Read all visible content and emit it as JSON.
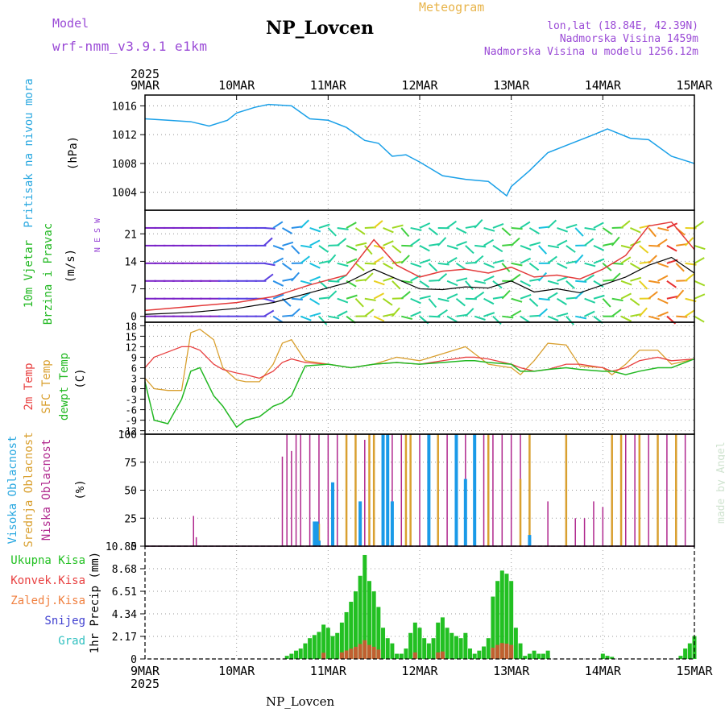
{
  "header": {
    "model_label": "Model",
    "model_name": "wrf-nmm_v3.9.1 e1km",
    "title": "NP_Lovcen",
    "subtitle": "Meteogram",
    "coords": "lon,lat (18.84E, 42.39N)",
    "altitude": "Nadmorska Visina 1459m",
    "model_altitude": "Nadmorska Visina u modelu 1256.12m",
    "footer_title": "NP_Lovcen",
    "credit": "made by Angel"
  },
  "colors": {
    "pressure": "#1aa0e8",
    "windspeed": "#000000",
    "gust": "#e33a3a",
    "t2m": "#e84040",
    "sfc": "#d9a030",
    "dew": "#22b822",
    "cloud_high": "#1a9ae8",
    "cloud_mid": "#d9a030",
    "cloud_low": "#b0288e",
    "precip_total": "#22c022",
    "precip_conv": "#e84040",
    "label_purple": "#9a4ad6",
    "label_blue": "#2aa8e0"
  },
  "time_axis": {
    "year": "2025",
    "labels": [
      "9MAR",
      "10MAR",
      "11MAR",
      "12MAR",
      "13MAR",
      "14MAR",
      "15MAR"
    ]
  },
  "chart_data": [
    {
      "type": "line",
      "panel": "pressure",
      "ylabel_lines": [
        "Pritisak na nivou mora",
        "(hPa)"
      ],
      "yticks": [
        "1016",
        "1012",
        "1008",
        "1004"
      ],
      "ylim": [
        1001.5,
        1017.5
      ],
      "x": [
        0,
        0.25,
        0.5,
        0.7,
        0.9,
        1.0,
        1.2,
        1.35,
        1.6,
        1.8,
        2.0,
        2.2,
        2.4,
        2.55,
        2.7,
        2.85,
        3.0,
        3.25,
        3.5,
        3.75,
        3.95,
        4.0,
        4.2,
        4.4,
        4.6,
        4.9,
        5.05,
        5.3,
        5.5,
        5.75,
        6.0
      ],
      "values": [
        1014.2,
        1014.0,
        1013.8,
        1013.2,
        1014.0,
        1015.0,
        1015.8,
        1016.2,
        1016.0,
        1014.2,
        1014.0,
        1013.0,
        1011.2,
        1010.8,
        1009.0,
        1009.2,
        1008.2,
        1006.3,
        1005.8,
        1005.5,
        1003.5,
        1004.8,
        1007.0,
        1009.5,
        1010.5,
        1012.0,
        1012.8,
        1011.5,
        1011.3,
        1009.0,
        1008.0
      ]
    },
    {
      "type": "line",
      "panel": "wind",
      "ylabel_lines": [
        "10m Vjetar",
        "Brzina i Pravac",
        "(m/s)"
      ],
      "direction_key": [
        "N",
        "E",
        "S",
        "W"
      ],
      "yticks": [
        "21",
        "14",
        "7",
        "0"
      ],
      "ylim": [
        -1.5,
        27
      ],
      "x": [
        0,
        0.5,
        1.0,
        1.4,
        1.8,
        2.2,
        2.5,
        2.75,
        3.0,
        3.25,
        3.5,
        3.75,
        4.0,
        4.25,
        4.5,
        4.75,
        5.0,
        5.25,
        5.5,
        5.75,
        6.0
      ],
      "series": [
        {
          "name": "speed",
          "values": [
            0.5,
            1.0,
            2.0,
            3.5,
            6.0,
            8.5,
            12.0,
            9.5,
            7.0,
            6.8,
            7.5,
            7.2,
            9.0,
            6.2,
            7.0,
            6.0,
            8.0,
            10.0,
            13.0,
            15.0,
            11.0
          ]
        },
        {
          "name": "gust",
          "values": [
            1.5,
            2.5,
            3.5,
            5.0,
            8.0,
            10.5,
            19.5,
            13.0,
            10.0,
            11.5,
            12.0,
            11.0,
            12.5,
            10.0,
            10.5,
            9.5,
            12.0,
            15.5,
            23.0,
            24.0,
            17.0
          ]
        }
      ]
    },
    {
      "type": "line",
      "panel": "temperature",
      "ylabel_lines": [
        "2m Temp",
        "SFC Temp",
        "dewpt Temp",
        "(C)"
      ],
      "yticks": [
        "18",
        "15",
        "12",
        "9",
        "6",
        "3",
        "0",
        "-3",
        "-6",
        "-9",
        "-12"
      ],
      "ylim": [
        -13,
        19
      ],
      "x": [
        0,
        0.1,
        0.25,
        0.4,
        0.5,
        0.6,
        0.75,
        0.85,
        1.0,
        1.1,
        1.25,
        1.4,
        1.5,
        1.6,
        1.75,
        2.0,
        2.25,
        2.5,
        2.75,
        3.0,
        3.25,
        3.5,
        3.6,
        3.75,
        4.0,
        4.1,
        4.25,
        4.4,
        4.6,
        4.75,
        5.0,
        5.1,
        5.25,
        5.4,
        5.6,
        5.75,
        6.0
      ],
      "series": [
        {
          "name": "2m Temp",
          "values": [
            6,
            9,
            10.5,
            12,
            12,
            11,
            7,
            5.5,
            4.5,
            4,
            3,
            5,
            7.5,
            8.5,
            7.5,
            7,
            6,
            7,
            7.5,
            7,
            8,
            9,
            9,
            8.5,
            7,
            6,
            5,
            5.5,
            7,
            7,
            6,
            5,
            6,
            8,
            9,
            8,
            8.5
          ]
        },
        {
          "name": "SFC Temp",
          "values": [
            3,
            0,
            -0.5,
            -0.5,
            16,
            17,
            14,
            6,
            2.5,
            2,
            2,
            7,
            13,
            14,
            8,
            7,
            6,
            7,
            9,
            8,
            10,
            12,
            10,
            7,
            6,
            4,
            8,
            13,
            12.5,
            6.5,
            6,
            4,
            7,
            11,
            11,
            7,
            8.5
          ]
        },
        {
          "name": "dewpt Temp",
          "values": [
            2,
            -9,
            -10,
            -3,
            5,
            6,
            -2,
            -5,
            -11,
            -9,
            -8,
            -5,
            -4,
            -2,
            6.5,
            7,
            6,
            7,
            7.5,
            7,
            7.5,
            8,
            8,
            7.5,
            7,
            5,
            5,
            5.5,
            6,
            5.5,
            5,
            5,
            4,
            5,
            6,
            6,
            8.5
          ]
        }
      ]
    },
    {
      "type": "bar",
      "panel": "cloud",
      "ylabel_lines": [
        "Visoka Oblacnost",
        "Srednja Oblacnost",
        "Niska Oblacnost",
        "(%)"
      ],
      "yticks": [
        "100",
        "75",
        "50",
        "25",
        "0"
      ],
      "ylim": [
        0,
        100
      ],
      "series": [
        {
          "name": "Niska Oblacnost",
          "x": [
            0.53,
            0.56,
            1.5,
            1.55,
            1.6,
            1.65,
            1.7,
            1.8,
            1.9,
            2.0,
            2.1,
            2.2,
            2.3,
            2.4,
            2.5,
            2.6,
            2.7,
            2.8,
            2.9,
            3.0,
            3.1,
            3.2,
            3.3,
            3.4,
            3.5,
            3.6,
            3.7,
            3.8,
            3.9,
            4.0,
            4.1,
            4.2,
            4.4,
            4.6,
            4.7,
            4.8,
            4.9,
            5.0,
            5.25,
            5.35,
            5.5,
            5.6,
            5.7,
            5.8,
            5.9
          ],
          "values": [
            27,
            8,
            80,
            100,
            85,
            100,
            100,
            100,
            100,
            100,
            100,
            100,
            92,
            95,
            90,
            80,
            100,
            100,
            100,
            100,
            100,
            100,
            100,
            100,
            100,
            85,
            100,
            100,
            100,
            100,
            100,
            5,
            40,
            30,
            25,
            25,
            40,
            35,
            100,
            100,
            100,
            100,
            100,
            100,
            100
          ]
        },
        {
          "name": "Srednja Oblacnost",
          "x": [
            1.9,
            2.2,
            2.3,
            2.45,
            2.5,
            2.85,
            2.9,
            3.2,
            3.4,
            3.6,
            3.75,
            4.1,
            4.2,
            4.6,
            5.1,
            5.2,
            5.4,
            5.6,
            5.8
          ],
          "values": [
            20,
            100,
            100,
            100,
            100,
            100,
            100,
            100,
            100,
            100,
            100,
            60,
            100,
            100,
            100,
            100,
            100,
            100,
            100
          ]
        },
        {
          "name": "Visoka Oblacnost",
          "x": [
            1.85,
            1.88,
            1.9,
            2.05,
            2.35,
            2.6,
            2.65,
            2.7,
            3.1,
            3.4,
            3.5,
            3.6,
            4.2
          ],
          "values": [
            22,
            22,
            5,
            57,
            40,
            100,
            100,
            40,
            100,
            100,
            60,
            100,
            10
          ]
        }
      ]
    },
    {
      "type": "bar",
      "panel": "precip",
      "ylabel_lines": [
        "1hr Precip (mm)"
      ],
      "legend": [
        "Ukupna Kisa",
        "Konvek.Kisa",
        "Zaledj.Kisa",
        "Snijeg",
        "Grad"
      ],
      "yticks": [
        "10.85",
        "8.68",
        "6.51",
        "4.34",
        "2.17",
        "0"
      ],
      "ylim": [
        0,
        10.85
      ],
      "x": [
        1.55,
        1.6,
        1.65,
        1.7,
        1.75,
        1.8,
        1.85,
        1.9,
        1.95,
        2.0,
        2.05,
        2.1,
        2.15,
        2.2,
        2.25,
        2.3,
        2.35,
        2.4,
        2.45,
        2.5,
        2.55,
        2.6,
        2.65,
        2.7,
        2.75,
        2.8,
        2.85,
        2.9,
        2.95,
        3.0,
        3.05,
        3.1,
        3.15,
        3.2,
        3.25,
        3.3,
        3.35,
        3.4,
        3.45,
        3.5,
        3.55,
        3.6,
        3.65,
        3.7,
        3.75,
        3.8,
        3.85,
        3.9,
        3.95,
        4.0,
        4.05,
        4.1,
        4.15,
        4.2,
        4.25,
        4.3,
        4.35,
        4.4,
        5.0,
        5.05,
        5.1,
        5.85,
        5.9,
        5.95,
        6.0
      ],
      "values": [
        0.3,
        0.5,
        0.8,
        1.0,
        1.5,
        2.0,
        2.3,
        2.6,
        3.3,
        3.0,
        2.2,
        2.5,
        3.5,
        4.5,
        5.5,
        6.5,
        8.0,
        10.0,
        7.5,
        6.5,
        5.0,
        3.0,
        2.0,
        1.5,
        0.5,
        0.5,
        1.0,
        2.5,
        3.5,
        3.0,
        2.0,
        1.5,
        2.0,
        3.5,
        4.0,
        3.0,
        2.5,
        2.2,
        2.0,
        2.5,
        1.0,
        0.5,
        0.8,
        1.2,
        2.0,
        6.0,
        7.5,
        8.5,
        8.2,
        7.5,
        3.0,
        1.5,
        0.3,
        0.5,
        0.8,
        0.5,
        0.5,
        0.8,
        0.5,
        0.3,
        0.2,
        0.3,
        1.0,
        1.5,
        2.2
      ]
    }
  ]
}
